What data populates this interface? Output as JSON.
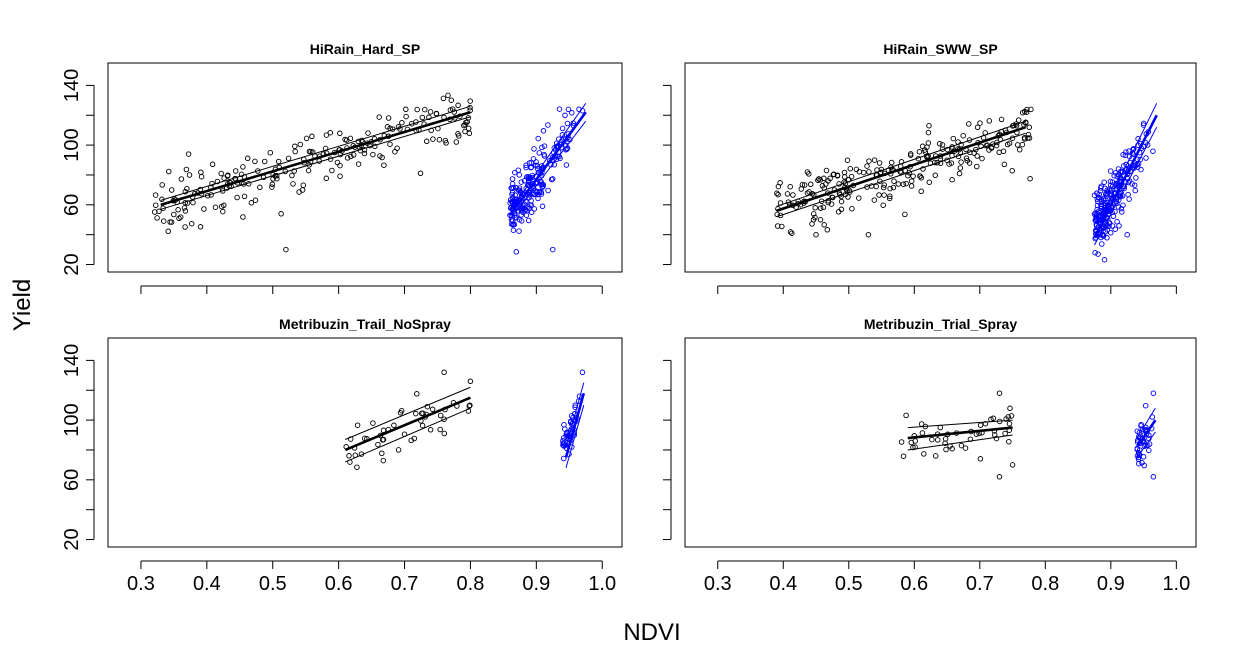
{
  "figure": {
    "xlabel": "NDVI",
    "ylabel": "Yield"
  },
  "colors": {
    "ndvi_series": "#000000",
    "saturated_series": "#0000ff",
    "frame": "#000000"
  },
  "chart_data": [
    {
      "type": "scatter",
      "title": "HiRain_Hard_SP",
      "xlim": [
        0.25,
        1.03
      ],
      "ylim": [
        15,
        155
      ],
      "xticks": [
        0.3,
        0.4,
        0.5,
        0.6,
        0.7,
        0.8,
        0.9,
        1.0
      ],
      "yticks": [
        20,
        60,
        100,
        140
      ],
      "x_tick_labels_shown": false,
      "y_tick_labels_shown": true,
      "series": [
        {
          "color": "#000000",
          "x_range": [
            0.32,
            0.8
          ],
          "y_center": [
            58,
            122
          ],
          "spread": 11,
          "n": 230,
          "outliers": [
            [
              0.52,
              30
            ]
          ],
          "fit": {
            "center": [
              [
                0.33,
                60
              ],
              [
                0.8,
                122
              ]
            ],
            "lower": [
              [
                0.33,
                57
              ],
              [
                0.8,
                119
              ]
            ],
            "upper": [
              [
                0.33,
                63
              ],
              [
                0.8,
                126
              ]
            ]
          }
        },
        {
          "color": "#0000ff",
          "x_range": [
            0.86,
            0.975
          ],
          "y_center": [
            55,
            118
          ],
          "spread": 12,
          "n": 220,
          "outliers": [
            [
              0.925,
              30
            ]
          ],
          "fit": {
            "center": [
              [
                0.86,
                53
              ],
              [
                0.975,
                122
              ]
            ],
            "lower": [
              [
                0.86,
                50
              ],
              [
                0.975,
                116
              ]
            ],
            "upper": [
              [
                0.86,
                56
              ],
              [
                0.975,
                128
              ]
            ]
          }
        }
      ]
    },
    {
      "type": "scatter",
      "title": "HiRain_SWW_SP",
      "xlim": [
        0.25,
        1.03
      ],
      "ylim": [
        15,
        155
      ],
      "xticks": [
        0.3,
        0.4,
        0.5,
        0.6,
        0.7,
        0.8,
        0.9,
        1.0
      ],
      "yticks": [
        20,
        60,
        100,
        140
      ],
      "x_tick_labels_shown": false,
      "y_tick_labels_shown": false,
      "series": [
        {
          "color": "#000000",
          "x_range": [
            0.39,
            0.78
          ],
          "y_center": [
            58,
            112
          ],
          "spread": 12,
          "n": 260,
          "outliers": [
            [
              0.45,
              40
            ],
            [
              0.53,
              40
            ]
          ],
          "fit": {
            "center": [
              [
                0.39,
                56
              ],
              [
                0.77,
                112
              ]
            ],
            "lower": [
              [
                0.39,
                52
              ],
              [
                0.77,
                108
              ]
            ],
            "upper": [
              [
                0.39,
                59
              ],
              [
                0.77,
                116
              ]
            ]
          }
        },
        {
          "color": "#0000ff",
          "x_range": [
            0.875,
            0.97
          ],
          "y_center": [
            45,
            112
          ],
          "spread": 12,
          "n": 240,
          "outliers": [
            [
              0.925,
              40
            ]
          ],
          "fit": {
            "center": [
              [
                0.875,
                38
              ],
              [
                0.97,
                120
              ]
            ],
            "lower": [
              [
                0.875,
                33
              ],
              [
                0.97,
                112
              ]
            ],
            "upper": [
              [
                0.875,
                43
              ],
              [
                0.97,
                128
              ]
            ]
          }
        }
      ]
    },
    {
      "type": "scatter",
      "title": "Metribuzin_Trail_NoSpray",
      "xlim": [
        0.25,
        1.03
      ],
      "ylim": [
        15,
        155
      ],
      "xticks": [
        0.3,
        0.4,
        0.5,
        0.6,
        0.7,
        0.8,
        0.9,
        1.0
      ],
      "yticks": [
        20,
        60,
        100,
        140
      ],
      "x_tick_labels_shown": true,
      "y_tick_labels_shown": true,
      "series": [
        {
          "color": "#000000",
          "x_range": [
            0.61,
            0.8
          ],
          "y_center": [
            82,
            112
          ],
          "spread": 11,
          "n": 48,
          "outliers": [
            [
              0.76,
              132
            ],
            [
              0.8,
              126
            ]
          ],
          "fit": {
            "center": [
              [
                0.61,
                80
              ],
              [
                0.8,
                115
              ]
            ],
            "lower": [
              [
                0.61,
                72
              ],
              [
                0.8,
                108
              ]
            ],
            "upper": [
              [
                0.61,
                87
              ],
              [
                0.8,
                122
              ]
            ]
          }
        },
        {
          "color": "#0000ff",
          "x_range": [
            0.94,
            0.972
          ],
          "y_center": [
            82,
            112
          ],
          "spread": 9,
          "n": 45,
          "outliers": [
            [
              0.97,
              132
            ]
          ],
          "fit": {
            "center": [
              [
                0.945,
                75
              ],
              [
                0.972,
                118
              ]
            ],
            "lower": [
              [
                0.945,
                68
              ],
              [
                0.972,
                110
              ]
            ],
            "upper": [
              [
                0.945,
                82
              ],
              [
                0.972,
                125
              ]
            ]
          }
        }
      ]
    },
    {
      "type": "scatter",
      "title": "Metribuzin_Trial_Spray",
      "xlim": [
        0.25,
        1.03
      ],
      "ylim": [
        15,
        155
      ],
      "xticks": [
        0.3,
        0.4,
        0.5,
        0.6,
        0.7,
        0.8,
        0.9,
        1.0
      ],
      "yticks": [
        20,
        60,
        100,
        140
      ],
      "x_tick_labels_shown": true,
      "y_tick_labels_shown": false,
      "series": [
        {
          "color": "#000000",
          "x_range": [
            0.58,
            0.75
          ],
          "y_center": [
            84,
            96
          ],
          "spread": 9,
          "n": 48,
          "outliers": [
            [
              0.73,
              62
            ],
            [
              0.75,
              70
            ],
            [
              0.73,
              118
            ]
          ],
          "fit": {
            "center": [
              [
                0.59,
                88
              ],
              [
                0.75,
                95
              ]
            ],
            "lower": [
              [
                0.59,
                80
              ],
              [
                0.75,
                90
              ]
            ],
            "upper": [
              [
                0.59,
                95
              ],
              [
                0.75,
                100
              ]
            ]
          }
        },
        {
          "color": "#0000ff",
          "x_range": [
            0.94,
            0.968
          ],
          "y_center": [
            80,
            100
          ],
          "spread": 9,
          "n": 45,
          "outliers": [
            [
              0.965,
              62
            ],
            [
              0.965,
              118
            ]
          ],
          "fit": {
            "center": [
              [
                0.94,
                82
              ],
              [
                0.968,
                100
              ]
            ],
            "lower": [
              [
                0.94,
                75
              ],
              [
                0.968,
                92
              ]
            ],
            "upper": [
              [
                0.94,
                88
              ],
              [
                0.968,
                108
              ]
            ]
          }
        }
      ]
    }
  ]
}
